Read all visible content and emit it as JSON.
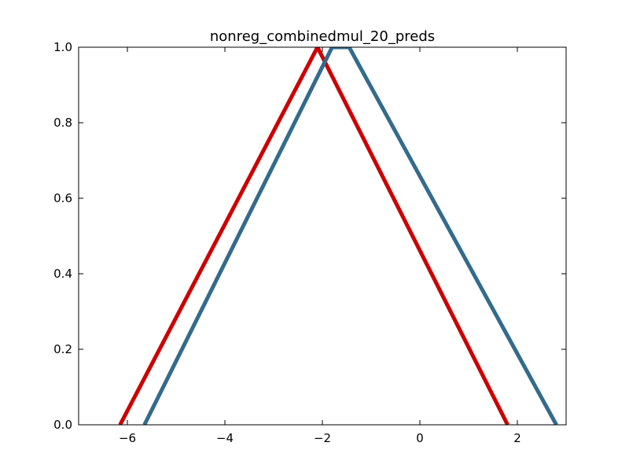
{
  "chart_data": {
    "type": "line",
    "title": "nonreg_combinedmul_20_preds",
    "xlabel": "",
    "ylabel": "",
    "xlim": [
      -7,
      3
    ],
    "ylim": [
      0.0,
      1.0
    ],
    "grid": false,
    "x_ticks": [
      -6,
      -4,
      -2,
      0,
      2
    ],
    "x_tick_labels": [
      "−6",
      "−4",
      "−2",
      "0",
      "2"
    ],
    "y_ticks": [
      0.0,
      0.2,
      0.4,
      0.6,
      0.8,
      1.0
    ],
    "y_tick_labels": [
      "0.0",
      "0.2",
      "0.4",
      "0.6",
      "0.8",
      "1.0"
    ],
    "series": [
      {
        "color": "#cc0000",
        "x": [
          -6.15,
          -2.1,
          1.8
        ],
        "y": [
          0.0,
          1.0,
          0.0
        ]
      },
      {
        "color": "#336b8c",
        "x": [
          -5.65,
          -1.8,
          -1.45,
          2.8
        ],
        "y": [
          0.0,
          1.0,
          1.0,
          0.0
        ]
      }
    ]
  }
}
